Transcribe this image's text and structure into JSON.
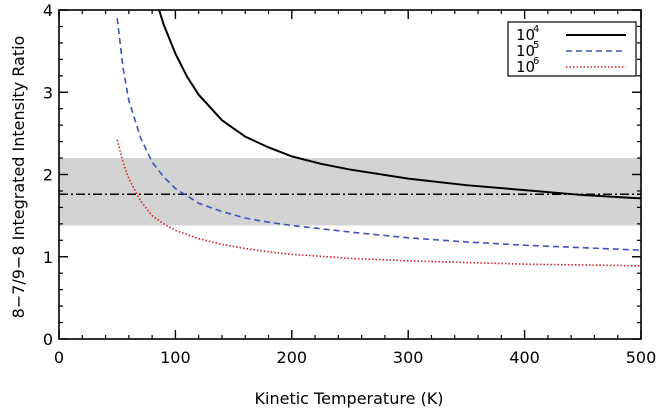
{
  "chart_data": {
    "type": "line",
    "xlabel": "Kinetic Temperature (K)",
    "ylabel": "8−7/9−8 Integrated Intensity Ratio",
    "xlim": [
      0,
      500
    ],
    "ylim": [
      0,
      4
    ],
    "xticks": [
      0,
      100,
      200,
      300,
      400,
      500
    ],
    "yticks": [
      0,
      1,
      2,
      3,
      4
    ],
    "xtick_labels": [
      "0",
      "100",
      "200",
      "300",
      "400",
      "500"
    ],
    "ytick_labels": [
      "0",
      "1",
      "2",
      "3",
      "4"
    ],
    "grid": false,
    "legend_position": "top-right",
    "band": {
      "y_range": [
        1.38,
        2.2
      ],
      "color": "#d3d3d3"
    },
    "hline": {
      "y": 1.76,
      "style": "dash-dot",
      "color": "#000000"
    },
    "series": [
      {
        "name": "10^4",
        "legend_base": "10",
        "legend_exp": "4",
        "color": "#000000",
        "style": "solid",
        "x": [
          86,
          90,
          100,
          110,
          120,
          140,
          160,
          180,
          200,
          225,
          250,
          300,
          350,
          400,
          450,
          500
        ],
        "y": [
          4.0,
          3.82,
          3.47,
          3.19,
          2.97,
          2.66,
          2.46,
          2.33,
          2.22,
          2.13,
          2.06,
          1.95,
          1.87,
          1.81,
          1.75,
          1.71
        ]
      },
      {
        "name": "10^5",
        "legend_base": "10",
        "legend_exp": "5",
        "color": "#3a55b4",
        "style": "dashed",
        "x": [
          50,
          55,
          60,
          70,
          80,
          90,
          100,
          120,
          140,
          160,
          180,
          200,
          250,
          300,
          350,
          400,
          450,
          500
        ],
        "y": [
          3.9,
          3.3,
          2.9,
          2.45,
          2.15,
          1.97,
          1.83,
          1.65,
          1.55,
          1.47,
          1.42,
          1.38,
          1.3,
          1.23,
          1.18,
          1.14,
          1.11,
          1.08
        ]
      },
      {
        "name": "10^6",
        "legend_base": "10",
        "legend_exp": "6",
        "color": "#d42020",
        "style": "dotted",
        "x": [
          50,
          55,
          60,
          70,
          80,
          90,
          100,
          120,
          140,
          160,
          180,
          200,
          250,
          300,
          350,
          400,
          450,
          500
        ],
        "y": [
          2.42,
          2.15,
          1.95,
          1.68,
          1.5,
          1.4,
          1.32,
          1.22,
          1.15,
          1.1,
          1.06,
          1.03,
          0.98,
          0.95,
          0.93,
          0.91,
          0.9,
          0.89
        ]
      }
    ]
  }
}
